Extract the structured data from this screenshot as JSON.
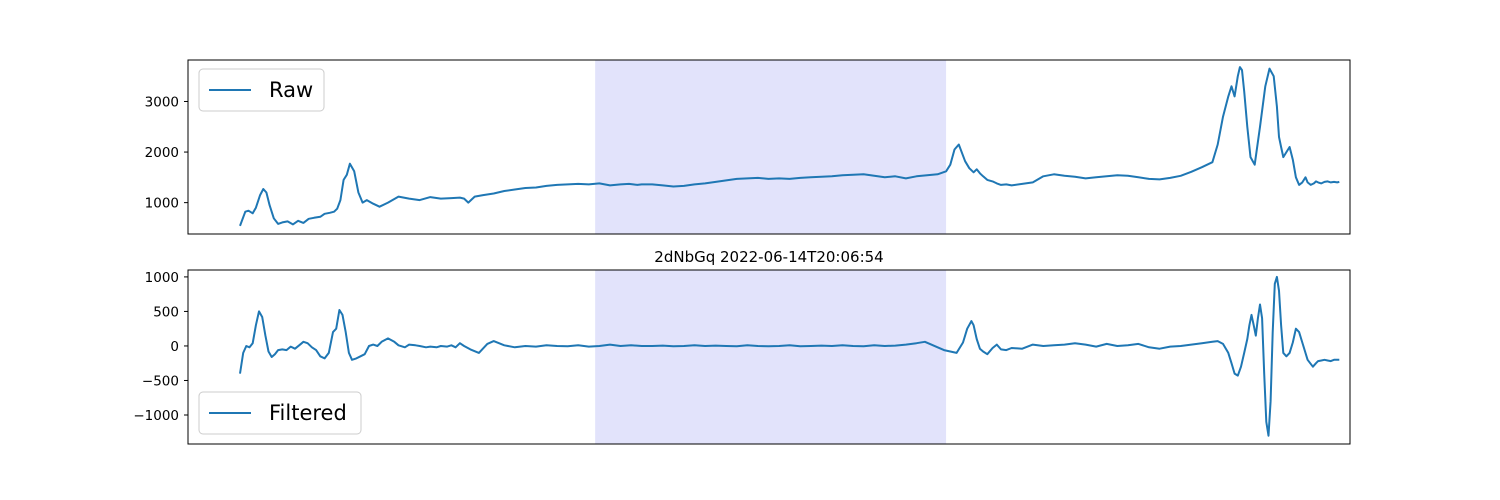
{
  "chart_data": [
    {
      "type": "line",
      "title": "",
      "xlabel": "",
      "ylabel": "",
      "xlim": [
        0,
        1000
      ],
      "ylim": [
        380,
        3820
      ],
      "yticks": [
        1000,
        2000,
        3000
      ],
      "grid": false,
      "legend_position": "top-left",
      "highlight_region": {
        "x_start": 336,
        "x_end": 668,
        "color": "#e2e3fb"
      },
      "series": [
        {
          "name": "Raw",
          "color": "#1f77b4",
          "x": [
            0,
            5,
            8,
            12,
            15,
            19,
            22,
            25,
            28,
            32,
            36,
            40,
            45,
            50,
            55,
            60,
            65,
            70,
            76,
            80,
            85,
            89,
            92,
            95,
            98,
            101,
            104,
            108,
            112,
            116,
            120,
            126,
            132,
            140,
            150,
            160,
            170,
            180,
            190,
            200,
            208,
            212,
            216,
            222,
            230,
            240,
            250,
            260,
            270,
            280,
            290,
            300,
            310,
            320,
            330,
            340,
            350,
            360,
            368,
            372,
            376,
            380,
            390,
            400,
            410,
            420,
            430,
            440,
            450,
            460,
            470,
            480,
            490,
            500,
            510,
            520,
            530,
            540,
            550,
            560,
            570,
            580,
            590,
            600,
            610,
            620,
            630,
            640,
            650,
            660,
            668,
            672,
            676,
            680,
            686,
            690,
            694,
            697,
            700,
            703,
            707,
            712,
            716,
            720,
            725,
            730,
            740,
            750,
            760,
            770,
            780,
            790,
            800,
            810,
            820,
            830,
            840,
            850,
            860,
            870,
            880,
            890,
            900,
            910,
            920,
            925,
            930,
            935,
            938,
            941,
            944,
            946,
            948,
            950,
            953,
            956,
            960,
            965,
            970,
            974,
            978,
            981,
            983,
            985,
            987,
            990,
            993,
            996,
            999,
            1002,
            1005,
            1008,
            1010,
            1013,
            1016,
            1018,
            1020,
            1023,
            1026,
            1029,
            1032,
            1035,
            1038,
            1040
          ],
          "y": [
            540,
            820,
            840,
            790,
            900,
            1150,
            1270,
            1200,
            950,
            690,
            580,
            610,
            630,
            570,
            640,
            600,
            680,
            700,
            720,
            780,
            800,
            820,
            880,
            1050,
            1450,
            1550,
            1770,
            1620,
            1200,
            1000,
            1050,
            980,
            920,
            1000,
            1120,
            1080,
            1050,
            1110,
            1080,
            1090,
            1100,
            1080,
            1000,
            1120,
            1150,
            1180,
            1230,
            1260,
            1290,
            1300,
            1330,
            1350,
            1360,
            1370,
            1360,
            1380,
            1340,
            1360,
            1370,
            1360,
            1350,
            1360,
            1360,
            1340,
            1320,
            1330,
            1360,
            1380,
            1410,
            1440,
            1470,
            1480,
            1490,
            1470,
            1480,
            1470,
            1490,
            1500,
            1510,
            1520,
            1540,
            1550,
            1560,
            1530,
            1500,
            1520,
            1480,
            1520,
            1540,
            1560,
            1620,
            1750,
            2050,
            2150,
            1820,
            1680,
            1600,
            1660,
            1580,
            1520,
            1450,
            1420,
            1380,
            1350,
            1360,
            1340,
            1370,
            1400,
            1520,
            1560,
            1530,
            1510,
            1480,
            1500,
            1520,
            1540,
            1530,
            1500,
            1470,
            1460,
            1490,
            1530,
            1610,
            1700,
            1800,
            2150,
            2700,
            3100,
            3300,
            3100,
            3500,
            3680,
            3620,
            3200,
            2500,
            1900,
            1750,
            2500,
            3300,
            3650,
            3500,
            2900,
            2300,
            2100,
            1900,
            2000,
            2100,
            1850,
            1500,
            1350,
            1400,
            1500,
            1400,
            1350,
            1380,
            1420,
            1400,
            1380,
            1410,
            1420,
            1400,
            1410,
            1400,
            1410
          ]
        }
      ]
    },
    {
      "type": "line",
      "title": "2dNbGq 2022-06-14T20:06:54",
      "xlabel": "",
      "ylabel": "",
      "xlim": [
        0,
        1000
      ],
      "ylim": [
        -1420,
        1100
      ],
      "yticks": [
        -1000,
        -500,
        0,
        500,
        1000
      ],
      "grid": false,
      "legend_position": "bottom-left",
      "highlight_region": {
        "x_start": 336,
        "x_end": 668,
        "color": "#e2e3fb"
      },
      "series": [
        {
          "name": "Filtered",
          "color": "#1f77b4",
          "x": [
            0,
            3,
            6,
            9,
            12,
            15,
            18,
            21,
            24,
            27,
            30,
            33,
            36,
            40,
            44,
            48,
            52,
            56,
            60,
            64,
            68,
            72,
            76,
            80,
            84,
            88,
            91,
            94,
            97,
            100,
            103,
            106,
            110,
            114,
            118,
            122,
            126,
            130,
            134,
            140,
            146,
            150,
            156,
            160,
            166,
            170,
            176,
            180,
            186,
            190,
            196,
            200,
            204,
            208,
            212,
            218,
            226,
            234,
            240,
            250,
            260,
            270,
            280,
            290,
            300,
            310,
            320,
            330,
            340,
            350,
            360,
            370,
            380,
            390,
            400,
            410,
            420,
            430,
            440,
            450,
            460,
            470,
            480,
            490,
            500,
            510,
            520,
            530,
            540,
            550,
            560,
            570,
            580,
            590,
            600,
            610,
            620,
            630,
            640,
            648,
            654,
            660,
            666,
            672,
            678,
            684,
            688,
            692,
            694,
            697,
            700,
            703,
            707,
            712,
            716,
            720,
            725,
            730,
            740,
            750,
            760,
            770,
            780,
            790,
            800,
            810,
            820,
            830,
            840,
            850,
            860,
            870,
            880,
            890,
            900,
            910,
            920,
            925,
            930,
            935,
            938,
            941,
            944,
            947,
            950,
            953,
            955,
            957,
            959,
            961,
            963,
            965,
            967,
            969,
            971,
            973,
            975,
            977,
            979,
            981,
            983,
            985,
            987,
            990,
            993,
            996,
            999,
            1002,
            1005,
            1010,
            1015,
            1018,
            1020,
            1023,
            1026,
            1029,
            1032,
            1035,
            1038,
            1040
          ],
          "y": [
            -400,
            -100,
            0,
            -20,
            40,
            300,
            500,
            420,
            150,
            -80,
            -160,
            -120,
            -60,
            -50,
            -60,
            -10,
            -40,
            10,
            60,
            40,
            -20,
            -60,
            -150,
            -180,
            -100,
            200,
            250,
            520,
            450,
            200,
            -100,
            -200,
            -180,
            -150,
            -120,
            0,
            20,
            0,
            60,
            110,
            60,
            10,
            -20,
            20,
            10,
            0,
            -20,
            -10,
            -20,
            0,
            -10,
            10,
            -20,
            40,
            0,
            -50,
            -100,
            30,
            70,
            10,
            -20,
            0,
            -10,
            10,
            0,
            -5,
            10,
            -10,
            0,
            20,
            0,
            10,
            0,
            0,
            5,
            -5,
            0,
            10,
            0,
            5,
            0,
            -5,
            10,
            0,
            -5,
            0,
            10,
            -5,
            0,
            5,
            0,
            10,
            0,
            -5,
            10,
            0,
            5,
            20,
            40,
            60,
            20,
            -20,
            -60,
            -80,
            -100,
            50,
            250,
            360,
            300,
            100,
            -40,
            -80,
            -120,
            -30,
            20,
            -50,
            -60,
            -30,
            -40,
            20,
            0,
            10,
            20,
            40,
            20,
            -10,
            30,
            0,
            10,
            30,
            -20,
            -40,
            -10,
            0,
            20,
            40,
            60,
            70,
            30,
            -100,
            -250,
            -400,
            -430,
            -300,
            -100,
            100,
            300,
            450,
            300,
            150,
            400,
            600,
            400,
            -400,
            -1100,
            -1300,
            -800,
            200,
            900,
            1000,
            800,
            300,
            -100,
            -150,
            -100,
            50,
            250,
            200,
            50,
            -200,
            -300,
            -250,
            -220,
            -210,
            -200,
            -210,
            -220,
            -200,
            -200,
            -200
          ]
        }
      ]
    }
  ]
}
